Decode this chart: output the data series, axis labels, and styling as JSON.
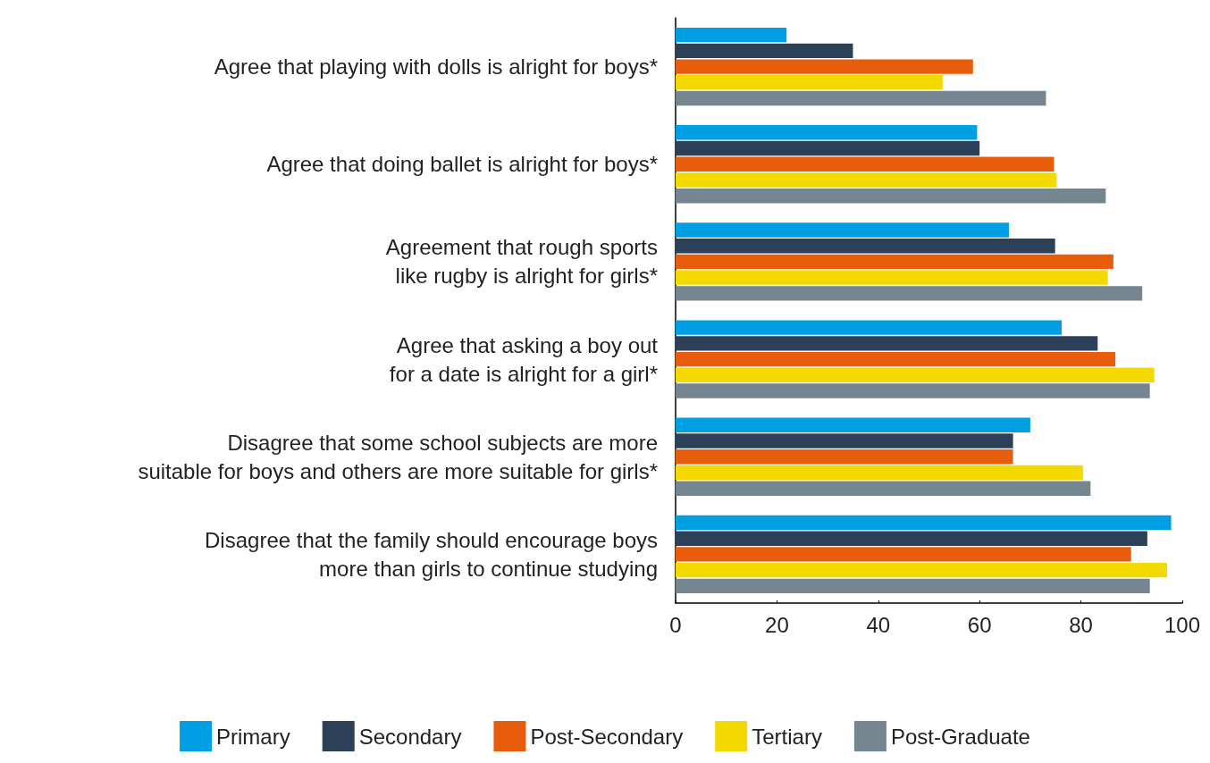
{
  "chart_data": {
    "type": "bar",
    "orientation": "horizontal",
    "categories": [
      "Agree that playing with dolls is alright for boys*",
      "Agree that doing ballet is alright for boys*",
      "Agreement that rough sports\nlike rugby is alright for girls*",
      "Agree that asking a boy out\nfor a date is alright for a girl*",
      "Disagree that some school subjects are more\nsuitable for boys and others are more suitable for girls*",
      "Disagree that the family should encourage boys\nmore than girls to continue studying"
    ],
    "series": [
      {
        "name": "Primary",
        "color": "#009fe3",
        "values": [
          21.9,
          59.5,
          65.8,
          76.2,
          70,
          97.8
        ]
      },
      {
        "name": "Secondary",
        "color": "#2c4058",
        "values": [
          35,
          60,
          74.9,
          83.3,
          66.6,
          93.1
        ]
      },
      {
        "name": "Post-Secondary",
        "color": "#e85d0c",
        "values": [
          58.7,
          74.7,
          86.4,
          86.8,
          66.6,
          89.9
        ]
      },
      {
        "name": "Tertiary",
        "color": "#f3d900",
        "values": [
          52.7,
          75.2,
          85.3,
          94.5,
          80.4,
          97
        ]
      },
      {
        "name": "Post-Graduate",
        "color": "#768690",
        "values": [
          73.1,
          84.9,
          92.1,
          93.6,
          81.9,
          93.6
        ]
      }
    ],
    "xlim": [
      0,
      100
    ],
    "xticks": [
      0,
      20,
      40,
      60,
      80,
      100
    ],
    "grid": false,
    "legend": "bottom"
  }
}
